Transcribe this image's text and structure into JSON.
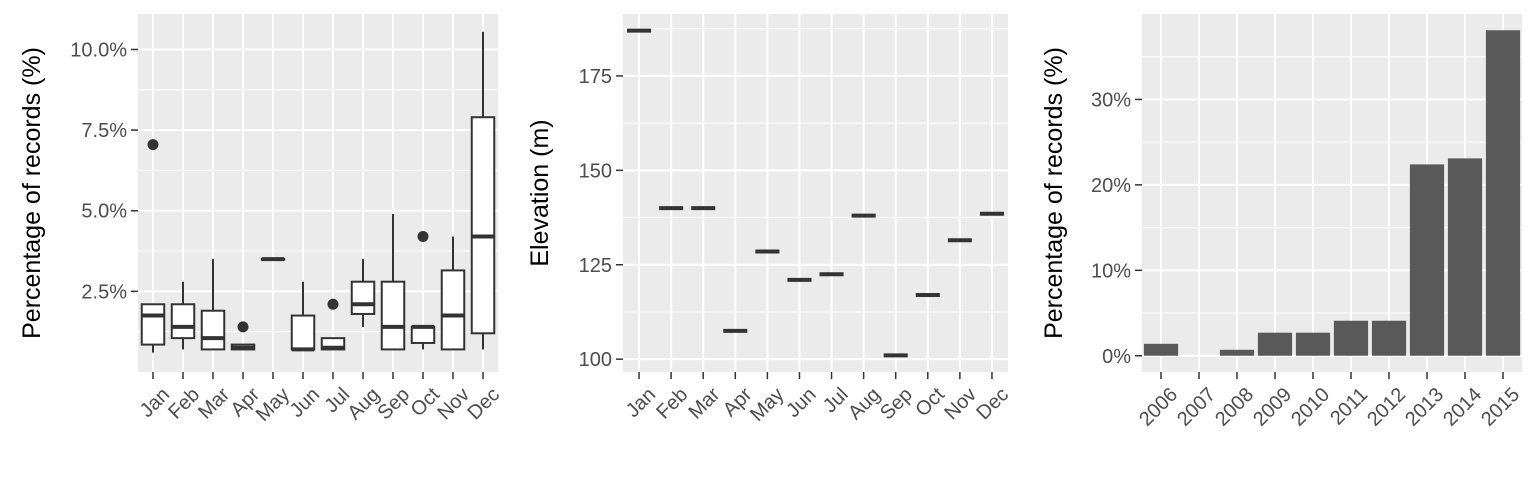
{
  "chart_data": [
    {
      "type": "box",
      "ylabel": "Percentage of records (%)",
      "categories": [
        "Jan",
        "Feb",
        "Mar",
        "Apr",
        "May",
        "Jun",
        "Jul",
        "Aug",
        "Sep",
        "Oct",
        "Nov",
        "Dec"
      ],
      "y_ticks": [
        2.5,
        5.0,
        7.5,
        10.0
      ],
      "y_tick_labels": [
        "2.5%",
        "5.0%",
        "7.5%",
        "10.0%"
      ],
      "ylim": [
        0,
        11.1
      ],
      "grid": true,
      "boxes": [
        {
          "low": 0.6,
          "q1": 0.85,
          "median": 1.75,
          "q3": 2.1,
          "high": 2.1,
          "outliers": [
            7.05
          ]
        },
        {
          "low": 0.7,
          "q1": 1.05,
          "median": 1.4,
          "q3": 2.1,
          "high": 2.8,
          "outliers": []
        },
        {
          "low": 0.7,
          "q1": 0.7,
          "median": 1.05,
          "q3": 1.9,
          "high": 3.5,
          "outliers": []
        },
        {
          "low": 0.7,
          "q1": 0.7,
          "median": 0.75,
          "q3": 0.85,
          "high": 0.85,
          "outliers": [
            1.4
          ]
        },
        {
          "low": 3.5,
          "q1": 3.5,
          "median": 3.5,
          "q3": 3.5,
          "high": 3.5,
          "outliers": []
        },
        {
          "low": 0.7,
          "q1": 0.7,
          "median": 0.7,
          "q3": 1.75,
          "high": 2.8,
          "outliers": []
        },
        {
          "low": 0.7,
          "q1": 0.7,
          "median": 0.75,
          "q3": 1.05,
          "high": 1.05,
          "outliers": [
            2.1
          ]
        },
        {
          "low": 1.4,
          "q1": 1.8,
          "median": 2.1,
          "q3": 2.8,
          "high": 3.5,
          "outliers": []
        },
        {
          "low": 0.7,
          "q1": 0.7,
          "median": 1.4,
          "q3": 2.8,
          "high": 4.9,
          "outliers": []
        },
        {
          "low": 0.7,
          "q1": 0.9,
          "median": 1.4,
          "q3": 1.4,
          "high": 1.4,
          "outliers": [
            4.2
          ]
        },
        {
          "low": 0.7,
          "q1": 0.7,
          "median": 1.75,
          "q3": 3.15,
          "high": 4.2,
          "outliers": []
        },
        {
          "low": 0.7,
          "q1": 1.2,
          "median": 4.2,
          "q3": 7.9,
          "high": 10.55,
          "outliers": []
        }
      ]
    },
    {
      "type": "scatter",
      "ylabel": "Elevation (m)",
      "categories": [
        "Jan",
        "Feb",
        "Mar",
        "Apr",
        "May",
        "Jun",
        "Jul",
        "Aug",
        "Sep",
        "Oct",
        "Nov",
        "Dec"
      ],
      "values": [
        187,
        140,
        140,
        107.5,
        128.5,
        121,
        122.5,
        138,
        101,
        117,
        131.5,
        138.5
      ],
      "y_ticks": [
        100,
        125,
        150,
        175
      ],
      "y_tick_labels": [
        "100",
        "125",
        "150",
        "175"
      ],
      "ylim": [
        96.6,
        191.4
      ],
      "grid": true
    },
    {
      "type": "bar",
      "ylabel": "Percentage of records (%)",
      "categories": [
        "2006",
        "2007",
        "2008",
        "2009",
        "2010",
        "2011",
        "2012",
        "2013",
        "2014",
        "2015"
      ],
      "values": [
        1.4,
        0,
        0.7,
        2.7,
        2.7,
        4.1,
        4.1,
        22.4,
        23.1,
        38.1
      ],
      "y_ticks": [
        0,
        10,
        20,
        30
      ],
      "y_tick_labels": [
        "0%",
        "10%",
        "20%",
        "30%"
      ],
      "ylim": [
        -1.9,
        40.0
      ],
      "grid": true
    }
  ]
}
